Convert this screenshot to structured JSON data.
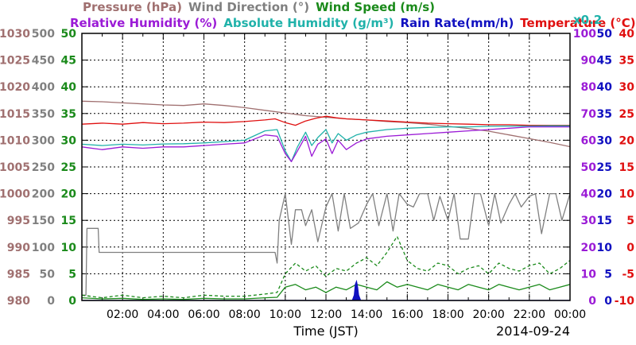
{
  "chart_data": {
    "type": "line",
    "date": "2014-09-24",
    "xlabel": "Time (JST)",
    "x_ticks": [
      "02:00",
      "04:00",
      "06:00",
      "08:00",
      "10:00",
      "12:00",
      "14:00",
      "16:00",
      "18:00",
      "20:00",
      "22:00",
      "00:00"
    ],
    "x_range_hours": [
      0,
      24
    ],
    "grid": true,
    "legend_placement": "top",
    "header": {
      "row1": [
        {
          "text": "Pressure (hPa)",
          "color": "#a07070"
        },
        {
          "text": "Wind Direction (°)",
          "color": "#808080"
        },
        {
          "text": "Wind Speed (m/s)",
          "color": "#1a8a1a"
        }
      ],
      "row2": [
        {
          "text": "Relative Humidity (%)",
          "color": "#9b1bd6"
        },
        {
          "text": "Absolute Humidity (g/m³)",
          "color": "#20b2aa"
        },
        {
          "text": "Rain Rate(mm/h)",
          "color": "#1010c0"
        },
        {
          "text": "Temperature (°C)",
          "color": "#e01010"
        }
      ],
      "scale_note": {
        "text": "x0.2",
        "color": "#20b2aa"
      }
    },
    "axes": {
      "pressure": {
        "label": "Pressure (hPa)",
        "color": "#a07070",
        "range": [
          980,
          1030
        ],
        "ticks": [
          "1030",
          "1025",
          "1020",
          "1015",
          "1010",
          "1005",
          "1000",
          "995",
          "990",
          "985",
          "980"
        ]
      },
      "wind_direction": {
        "label": "Wind Direction (°)",
        "color": "#808080",
        "range": [
          0,
          500
        ],
        "ticks": [
          "500",
          "450",
          "400",
          "350",
          "300",
          "250",
          "200",
          "150",
          "100",
          "50",
          "0"
        ]
      },
      "wind_speed": {
        "label": "Wind Speed (m/s)",
        "color": "#1a8a1a",
        "range": [
          0,
          50
        ],
        "ticks": [
          "50",
          "45",
          "40",
          "35",
          "30",
          "25",
          "20",
          "15",
          "10",
          "5",
          "0"
        ]
      },
      "humidity": {
        "label": "Relative Humidity (%)",
        "color": "#9b1bd6",
        "range": [
          0,
          100
        ],
        "ticks": [
          "100",
          "90",
          "80",
          "70",
          "60",
          "50",
          "40",
          "30",
          "20",
          "10",
          "0"
        ]
      },
      "rain_rate": {
        "label": "Rain Rate(mm/h)",
        "color": "#1010c0",
        "range": [
          0,
          50
        ],
        "ticks": [
          "50",
          "45",
          "40",
          "35",
          "30",
          "25",
          "20",
          "15",
          "10",
          "5",
          "0"
        ]
      },
      "temperature": {
        "label": "Temperature (°C)",
        "color": "#e01010",
        "range": [
          -10,
          40
        ],
        "ticks": [
          "40",
          "35",
          "30",
          "25",
          "20",
          "15",
          "10",
          "5",
          "0",
          "-5",
          "-10"
        ]
      }
    },
    "series": [
      {
        "name": "Pressure (hPa)",
        "axis": "pressure",
        "color": "#a07070",
        "style": "solid",
        "x": [
          0,
          1,
          2,
          3,
          4,
          5,
          6,
          7,
          8,
          9,
          10,
          11,
          12,
          13,
          14,
          15,
          16,
          17,
          18,
          19,
          20,
          21,
          22,
          23,
          24
        ],
        "y": [
          1017.3,
          1017.2,
          1017.0,
          1016.8,
          1016.6,
          1016.5,
          1016.8,
          1016.5,
          1016.1,
          1015.6,
          1015.1,
          1014.6,
          1014.3,
          1014.0,
          1013.8,
          1013.5,
          1013.3,
          1013.0,
          1012.6,
          1012.2,
          1011.7,
          1011.0,
          1010.3,
          1009.6,
          1008.8
        ]
      },
      {
        "name": "Temperature (°C)",
        "axis": "temperature",
        "color": "#e01010",
        "style": "solid",
        "x": [
          0,
          1,
          2,
          3,
          4,
          5,
          6,
          7,
          8,
          9,
          9.5,
          10,
          10.5,
          11,
          11.5,
          12,
          12.5,
          13,
          14,
          15,
          16,
          17,
          18,
          19,
          20,
          21,
          22,
          23,
          24
        ],
        "y": [
          23.0,
          23.2,
          23.0,
          23.3,
          23.1,
          23.2,
          23.4,
          23.3,
          23.5,
          23.8,
          24.0,
          23.3,
          22.8,
          23.6,
          24.1,
          24.5,
          24.2,
          24.0,
          23.8,
          23.6,
          23.4,
          23.2,
          23.1,
          23.0,
          22.9,
          22.9,
          22.8,
          22.8,
          22.8
        ]
      },
      {
        "name": "Absolute Humidity (g/m³)",
        "axis": "humidity",
        "color": "#20b2aa",
        "style": "solid",
        "scale": "x0.2",
        "x": [
          0,
          1,
          2,
          3,
          4,
          5,
          6,
          7,
          8,
          9,
          9.6,
          10.0,
          10.3,
          10.6,
          11,
          11.3,
          11.6,
          12,
          12.3,
          12.6,
          13,
          13.5,
          14,
          15,
          16,
          17,
          18,
          19,
          20,
          21,
          22,
          23,
          24
        ],
        "y": [
          58.5,
          58.0,
          58.5,
          58.2,
          58.6,
          58.7,
          59.0,
          59.5,
          60.0,
          63.5,
          64.0,
          56.0,
          52.0,
          57.5,
          63.0,
          58.0,
          61.0,
          64.0,
          59.0,
          62.5,
          60.0,
          62.0,
          63.0,
          64.0,
          64.5,
          64.8,
          65.0,
          65.0,
          65.2,
          65.3,
          65.3,
          65.4,
          65.4
        ]
      },
      {
        "name": "Relative Humidity (%)",
        "axis": "humidity",
        "color": "#9b1bd6",
        "style": "solid",
        "x": [
          0,
          1,
          2,
          3,
          4,
          5,
          6,
          7,
          8,
          9,
          9.6,
          10.0,
          10.3,
          10.6,
          11,
          11.3,
          11.6,
          12,
          12.3,
          12.6,
          13,
          13.5,
          14,
          15,
          16,
          17,
          18,
          19,
          20,
          21,
          22,
          23,
          24
        ],
        "y": [
          57.5,
          56.5,
          57.5,
          57.0,
          57.5,
          57.5,
          58.0,
          58.5,
          59.0,
          62.0,
          61.5,
          55.0,
          52.0,
          56.0,
          61.5,
          54.0,
          58.5,
          60.5,
          55.0,
          60.0,
          56.5,
          59.0,
          60.5,
          61.5,
          62.0,
          62.5,
          63.0,
          63.5,
          64.0,
          64.5,
          65.0,
          65.0,
          65.0
        ]
      },
      {
        "name": "Wind Direction (°)",
        "axis": "wind_direction",
        "color": "#808080",
        "style": "solid",
        "x": [
          0,
          0.2,
          0.25,
          0.8,
          0.85,
          9.5,
          9.6,
          9.7,
          10.0,
          10.3,
          10.5,
          10.8,
          11.0,
          11.3,
          11.6,
          12.0,
          12.3,
          12.6,
          12.9,
          13.2,
          13.6,
          14.0,
          14.3,
          14.6,
          15.0,
          15.3,
          15.6,
          16.0,
          16.3,
          16.6,
          17.0,
          17.3,
          17.6,
          18.0,
          18.3,
          18.6,
          19.0,
          19.3,
          19.6,
          20.0,
          20.3,
          20.6,
          21.0,
          21.3,
          21.6,
          22.0,
          22.3,
          22.6,
          23.0,
          23.3,
          23.6,
          24.0
        ],
        "y": [
          10,
          10,
          135,
          135,
          90,
          90,
          70,
          150,
          200,
          105,
          170,
          170,
          140,
          170,
          110,
          175,
          200,
          130,
          200,
          135,
          145,
          180,
          200,
          140,
          200,
          130,
          200,
          180,
          175,
          200,
          200,
          150,
          195,
          150,
          200,
          115,
          115,
          200,
          200,
          140,
          200,
          145,
          180,
          200,
          175,
          195,
          200,
          125,
          200,
          200,
          150,
          200
        ]
      },
      {
        "name": "Wind Speed (m/s) avg",
        "axis": "wind_speed",
        "color": "#1a8a1a",
        "style": "solid",
        "x": [
          0,
          1,
          2,
          3,
          4,
          5,
          6,
          7,
          8,
          9,
          9.6,
          10,
          10.5,
          11,
          11.5,
          12,
          12.5,
          13,
          13.5,
          14,
          14.5,
          15,
          15.5,
          16,
          16.5,
          17,
          17.5,
          18,
          18.5,
          19,
          19.5,
          20,
          20.5,
          21,
          21.5,
          22,
          22.5,
          23,
          23.5,
          24
        ],
        "y": [
          0.5,
          0.3,
          0.4,
          0.2,
          0.3,
          0.2,
          0.4,
          0.3,
          0.3,
          0.5,
          0.6,
          2.5,
          3.0,
          2.0,
          2.5,
          1.5,
          2.5,
          2.0,
          3.0,
          2.5,
          2.0,
          3.5,
          2.5,
          3.0,
          2.5,
          2.0,
          3.0,
          2.5,
          2.0,
          3.0,
          2.5,
          2.0,
          3.0,
          2.5,
          2.0,
          2.5,
          3.0,
          2.0,
          2.5,
          3.0
        ]
      },
      {
        "name": "Wind Speed (m/s) gust",
        "axis": "wind_speed",
        "color": "#1a8a1a",
        "style": "dashed",
        "x": [
          0,
          1,
          2,
          3,
          4,
          5,
          6,
          7,
          8,
          9,
          9.6,
          10,
          10.5,
          11,
          11.5,
          12,
          12.5,
          13,
          13.5,
          14,
          14.5,
          15,
          15.5,
          16,
          16.5,
          17,
          17.5,
          18,
          18.5,
          19,
          19.5,
          20,
          20.5,
          21,
          21.5,
          22,
          22.5,
          23,
          23.5,
          24
        ],
        "y": [
          1.0,
          0.5,
          1.0,
          0.5,
          0.8,
          0.5,
          1.0,
          0.8,
          0.8,
          1.2,
          1.5,
          5.0,
          7.0,
          5.5,
          6.5,
          4.5,
          6.0,
          5.5,
          7.0,
          8.0,
          6.5,
          9.0,
          12.0,
          7.5,
          6.0,
          5.5,
          7.0,
          6.5,
          5.0,
          6.0,
          6.5,
          5.0,
          7.0,
          6.0,
          5.5,
          6.5,
          7.0,
          5.0,
          6.0,
          7.5
        ]
      },
      {
        "name": "Rain Rate(mm/h)",
        "axis": "rain_rate",
        "color": "#1010c0",
        "style": "filled",
        "x": [
          0,
          13.3,
          13.4,
          13.45,
          13.5,
          13.55,
          13.6,
          13.7,
          24
        ],
        "y": [
          0,
          0,
          1.0,
          3.0,
          3.5,
          2.5,
          1.0,
          0,
          0
        ]
      }
    ]
  }
}
